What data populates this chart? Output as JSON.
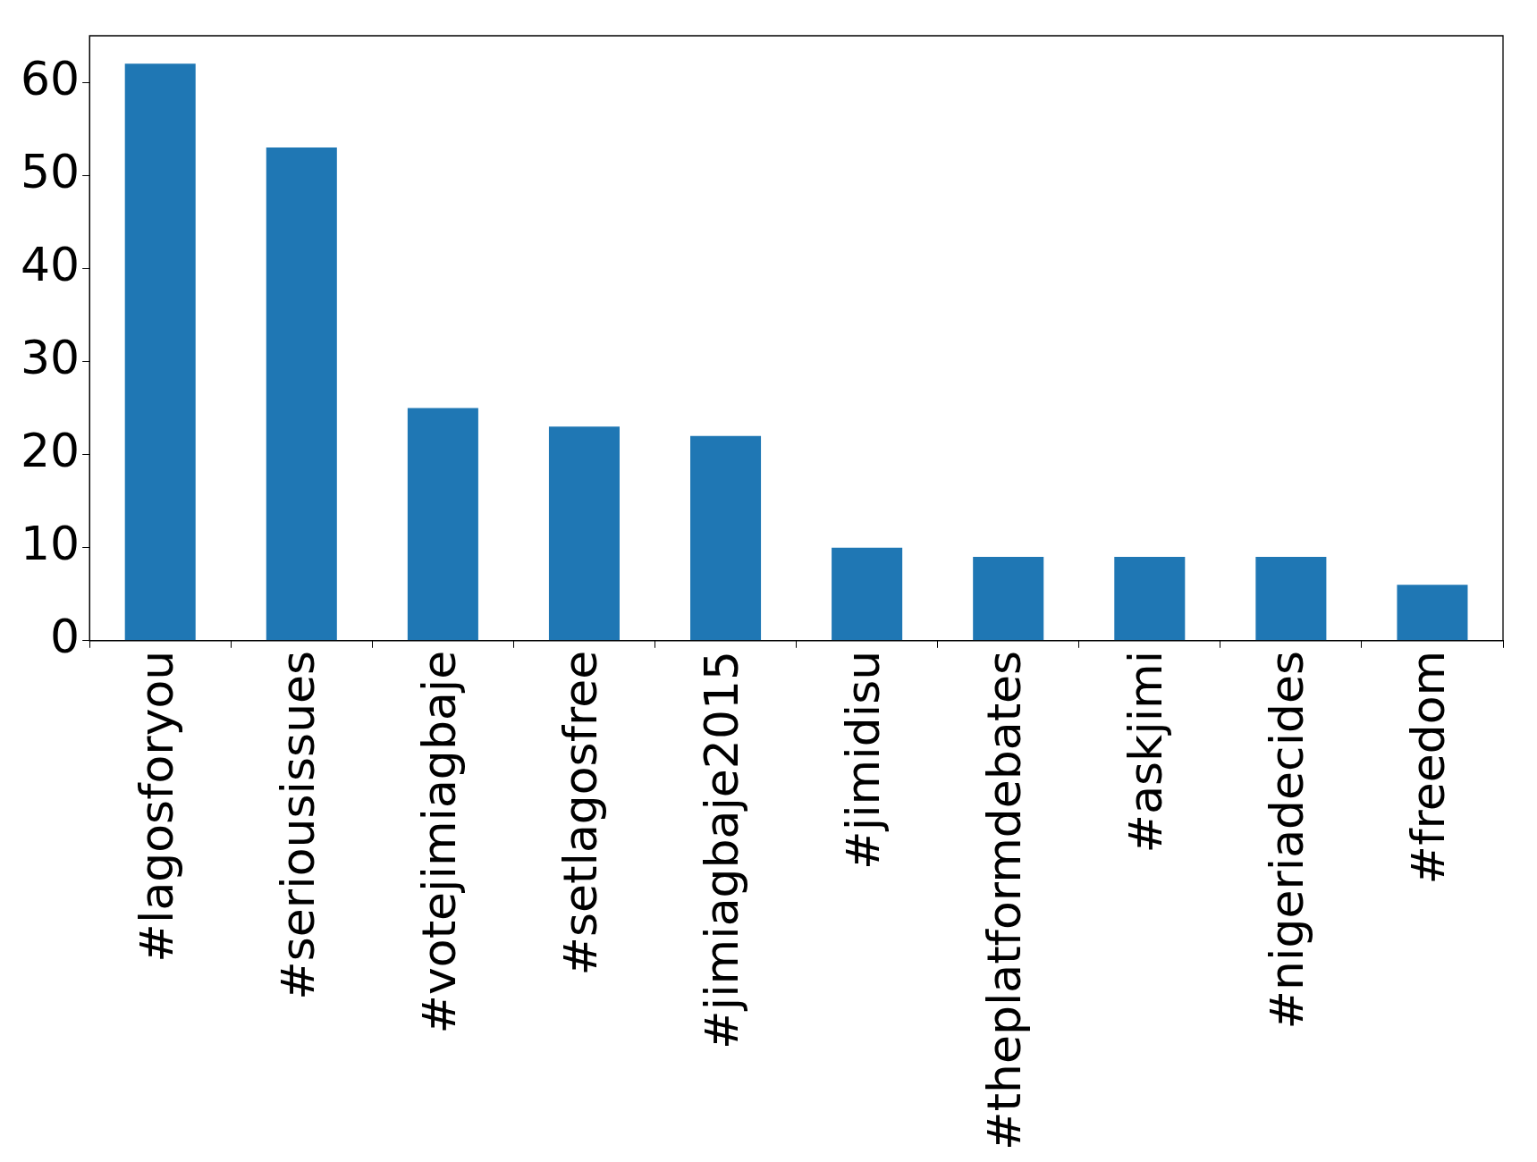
{
  "chart_data": {
    "type": "bar",
    "categories": [
      "#lagosforyou",
      "#seriousissues",
      "#votejimiagbaje",
      "#setlagosfree",
      "#jimiagbaje2015",
      "#jimidisu",
      "#theplatformdebates",
      "#askjimi",
      "#nigeriadecides",
      "#freedom"
    ],
    "values": [
      62,
      53,
      25,
      23,
      22,
      10,
      9,
      9,
      9,
      6
    ],
    "color": "#1f77b4",
    "ylim": [
      0,
      65
    ],
    "yticks": [
      0,
      10,
      20,
      30,
      40,
      50,
      60
    ]
  }
}
